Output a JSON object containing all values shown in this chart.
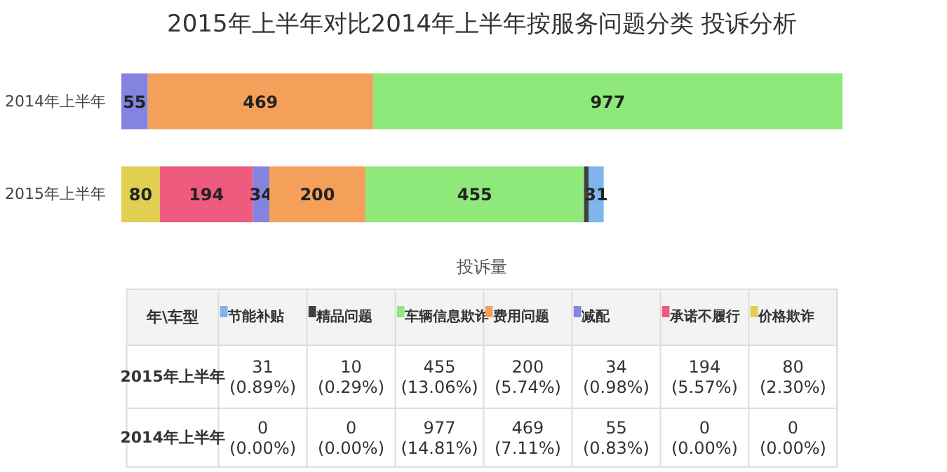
{
  "chart_data": {
    "type": "bar",
    "orientation": "horizontal",
    "stacked": true,
    "title": "2015年上半年对比2014年上半年按服务问题分类 投诉分析",
    "xlabel": "投诉量",
    "categories": [
      "2014年上半年",
      "2015年上半年"
    ],
    "series": [
      {
        "name": "价格欺诈",
        "color": "#e0cf50",
        "values": [
          0,
          80
        ],
        "value_labels": [
          null,
          "80"
        ]
      },
      {
        "name": "承诺不履行",
        "color": "#ef5a7f",
        "values": [
          0,
          194
        ],
        "value_labels": [
          null,
          "194"
        ]
      },
      {
        "name": "减配",
        "color": "#8484e0",
        "values": [
          55,
          34
        ],
        "value_labels": [
          "55",
          "34"
        ]
      },
      {
        "name": "费用问题",
        "color": "#f5a05a",
        "values": [
          469,
          200
        ],
        "value_labels": [
          "469",
          "200"
        ]
      },
      {
        "name": "车辆信息欺诈",
        "color": "#8ee87a",
        "values": [
          977,
          455
        ],
        "value_labels": [
          "977",
          "455"
        ]
      },
      {
        "name": "精品问题",
        "color": "#404040",
        "values": [
          0,
          10
        ],
        "value_labels": [
          null,
          null
        ]
      },
      {
        "name": "节能补贴",
        "color": "#7fb5ea",
        "values": [
          0,
          31
        ],
        "value_labels": [
          null,
          "31"
        ]
      }
    ],
    "tick_labels": "y",
    "legend": "bottom",
    "annotations": [
      "年\\车型",
      "31\n(0.89%)",
      "10\n(0.29%)",
      "455\n(13.06%)",
      "200\n(5.74%)",
      "34\n(0.98%)",
      "194\n(5.57%)",
      "80\n(2.30%)",
      "0\n(0.00%)",
      "0\n(0.00%)",
      "977\n(14.81%)",
      "469\n(7.11%)",
      "55\n(0.83%)",
      "0\n(0.00%)",
      "0\n(0.00%)"
    ]
  }
}
